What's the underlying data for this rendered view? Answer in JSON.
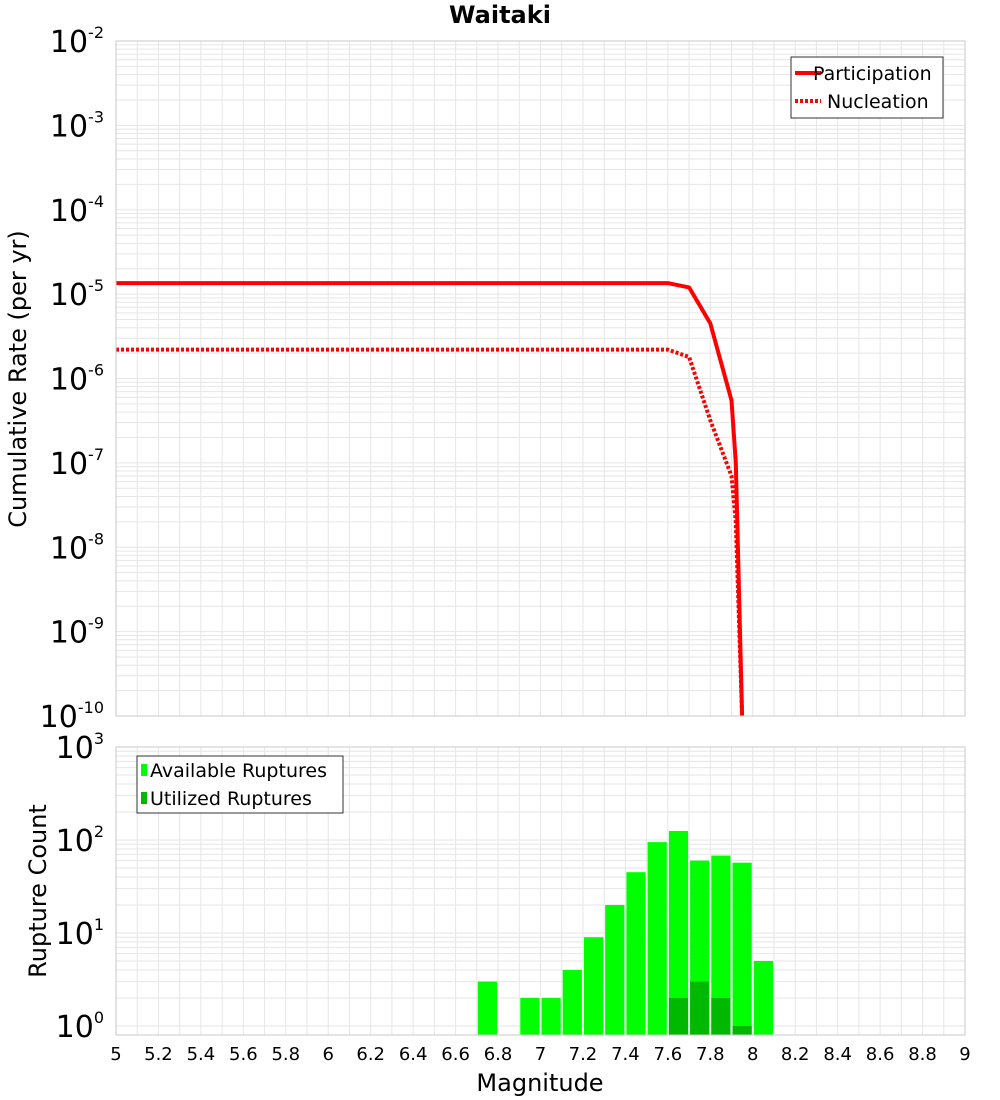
{
  "chart_data": [
    {
      "type": "line",
      "title": "Waitaki",
      "xlabel": "Magnitude",
      "ylabel": "Cumulative Rate (per yr)",
      "yscale": "log",
      "ylim": [
        1e-10,
        0.01
      ],
      "xlim": [
        5,
        9
      ],
      "ytick_labels": [
        {
          "base": "10",
          "exp": "-10"
        },
        {
          "base": "10",
          "exp": "-9"
        },
        {
          "base": "10",
          "exp": "-8"
        },
        {
          "base": "10",
          "exp": "-7"
        },
        {
          "base": "10",
          "exp": "-6"
        },
        {
          "base": "10",
          "exp": "-5"
        },
        {
          "base": "10",
          "exp": "-4"
        },
        {
          "base": "10",
          "exp": "-3"
        },
        {
          "base": "10",
          "exp": "-2"
        }
      ],
      "legend": {
        "position": "top-right"
      },
      "series": [
        {
          "name": "Participation",
          "style": "solid",
          "color": "#ff0000",
          "x": [
            5.0,
            7.6,
            7.7,
            7.8,
            7.9,
            7.92,
            7.95
          ],
          "y": [
            1.35e-05,
            1.35e-05,
            1.2e-05,
            4.5e-06,
            5.5e-07,
            1e-07,
            1e-10
          ]
        },
        {
          "name": "Nucleation",
          "style": "dotted",
          "color": "#ff0000",
          "x": [
            5.0,
            7.6,
            7.7,
            7.8,
            7.9,
            7.92,
            7.95
          ],
          "y": [
            2.2e-06,
            2.2e-06,
            1.8e-06,
            3.2e-07,
            7e-08,
            2e-08,
            1e-10
          ]
        }
      ]
    },
    {
      "type": "bar",
      "xlabel": "Magnitude",
      "ylabel": "Rupture Count",
      "yscale": "log",
      "ylim": [
        0.8,
        1000
      ],
      "xlim": [
        5,
        9
      ],
      "xticks": [
        "5",
        "5.2",
        "5.4",
        "5.6",
        "5.8",
        "6",
        "6.2",
        "6.4",
        "6.6",
        "6.8",
        "7",
        "7.2",
        "7.4",
        "7.6",
        "7.8",
        "8",
        "8.2",
        "8.4",
        "8.6",
        "8.8",
        "9"
      ],
      "ytick_labels": [
        {
          "base": "10",
          "exp": "0"
        },
        {
          "base": "10",
          "exp": "1"
        },
        {
          "base": "10",
          "exp": "2"
        },
        {
          "base": "10",
          "exp": "3"
        }
      ],
      "legend": {
        "position": "top-left"
      },
      "bin_width": 0.1,
      "series": [
        {
          "name": "Available Ruptures",
          "color": "#00ff00",
          "x": [
            6.75,
            6.95,
            7.05,
            7.15,
            7.25,
            7.35,
            7.45,
            7.55,
            7.65,
            7.75,
            7.85,
            7.95,
            8.05
          ],
          "values": [
            3,
            2,
            2,
            4,
            9,
            20,
            45,
            95,
            125,
            60,
            68,
            57,
            5
          ]
        },
        {
          "name": "Utilized Ruptures",
          "color": "#00b800",
          "x": [
            7.65,
            7.75,
            7.85,
            7.95
          ],
          "values": [
            2,
            3,
            2,
            1
          ]
        }
      ]
    }
  ]
}
